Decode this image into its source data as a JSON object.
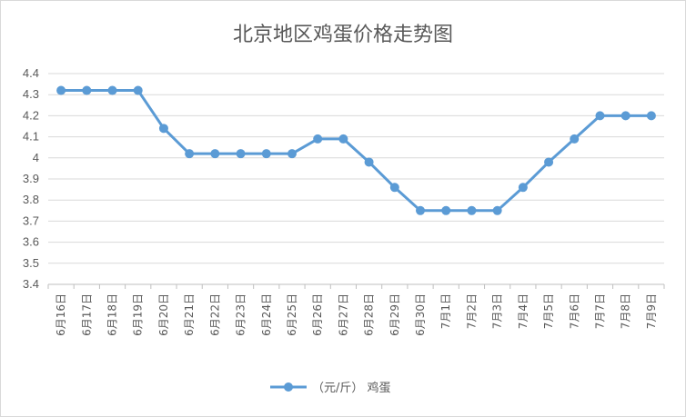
{
  "chart_data": {
    "type": "line",
    "title": "北京地区鸡蛋价格走势图",
    "xlabel": "",
    "ylabel": "",
    "ylim": [
      3.4,
      4.4
    ],
    "yticks": [
      "4.4",
      "4.3",
      "4.2",
      "4.1",
      "4",
      "3.9",
      "3.8",
      "3.7",
      "3.6",
      "3.5",
      "3.4"
    ],
    "grid": true,
    "legend_position": "bottom",
    "categories": [
      "6月16日",
      "6月17日",
      "6月18日",
      "6月19日",
      "6月20日",
      "6月21日",
      "6月22日",
      "6月23日",
      "6月24日",
      "6月25日",
      "6月26日",
      "6月27日",
      "6月28日",
      "6月29日",
      "6月30日",
      "7月1日",
      "7月2日",
      "7月3日",
      "7月4日",
      "7月5日",
      "7月6日",
      "7月7日",
      "7月8日",
      "7月9日"
    ],
    "series": [
      {
        "name": "（元/斤） 鸡蛋",
        "color": "#5b9bd5",
        "values": [
          4.32,
          4.32,
          4.32,
          4.32,
          4.14,
          4.02,
          4.02,
          4.02,
          4.02,
          4.02,
          4.09,
          4.09,
          3.98,
          3.86,
          3.75,
          3.75,
          3.75,
          3.75,
          3.86,
          3.98,
          4.09,
          4.2,
          4.2,
          4.2
        ]
      }
    ]
  }
}
